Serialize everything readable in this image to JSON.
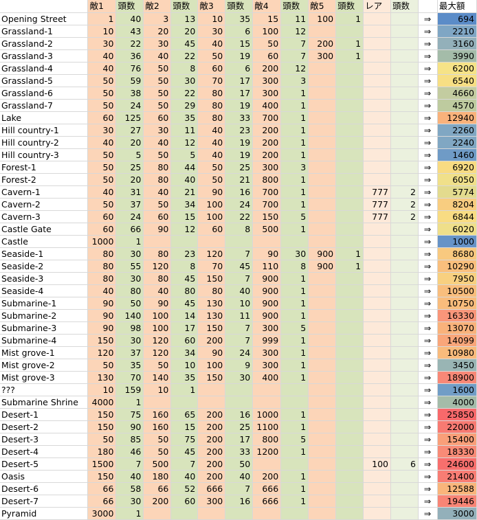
{
  "headers": [
    "",
    "敵1",
    "頭数",
    "敵2",
    "頭数",
    "敵3",
    "頭数",
    "敵4",
    "頭数",
    "敵5",
    "頭数",
    "レア",
    "頭数",
    "",
    "最大額"
  ],
  "arrow": "⇒",
  "rows": [
    {
      "name": "Opening Street",
      "v": [
        "1",
        "40",
        "3",
        "13",
        "10",
        "35",
        "15",
        "11",
        "100",
        "1",
        "",
        ""
      ],
      "max": "694",
      "color": "#5b8cc8"
    },
    {
      "name": "Grassland-1",
      "v": [
        "10",
        "43",
        "20",
        "20",
        "30",
        "6",
        "100",
        "12",
        "",
        "",
        "",
        ""
      ],
      "max": "2210",
      "color": "#7fa6c4"
    },
    {
      "name": "Grassland-2",
      "v": [
        "30",
        "22",
        "30",
        "45",
        "40",
        "15",
        "50",
        "7",
        "200",
        "1",
        "",
        ""
      ],
      "max": "3160",
      "color": "#93b0ba"
    },
    {
      "name": "Grassland-3",
      "v": [
        "40",
        "36",
        "40",
        "22",
        "50",
        "19",
        "60",
        "7",
        "300",
        "1",
        "",
        ""
      ],
      "max": "3990",
      "color": "#a4bca9"
    },
    {
      "name": "Grassland-4",
      "v": [
        "40",
        "76",
        "50",
        "8",
        "60",
        "6",
        "200",
        "12",
        "",
        "",
        "",
        ""
      ],
      "max": "6200",
      "color": "#f6e387"
    },
    {
      "name": "Grassland-5",
      "v": [
        "50",
        "59",
        "50",
        "30",
        "70",
        "17",
        "300",
        "3",
        "",
        "",
        "",
        ""
      ],
      "max": "6540",
      "color": "#f7df84"
    },
    {
      "name": "Grassland-6",
      "v": [
        "50",
        "38",
        "50",
        "22",
        "80",
        "17",
        "300",
        "1",
        "",
        "",
        "",
        ""
      ],
      "max": "4660",
      "color": "#c3cca0"
    },
    {
      "name": "Grassland-7",
      "v": [
        "50",
        "24",
        "50",
        "29",
        "80",
        "19",
        "400",
        "1",
        "",
        "",
        "",
        ""
      ],
      "max": "4570",
      "color": "#becb9f"
    },
    {
      "name": "Lake",
      "v": [
        "60",
        "125",
        "60",
        "35",
        "80",
        "33",
        "700",
        "1",
        "",
        "",
        "",
        ""
      ],
      "max": "12940",
      "color": "#f9b27b"
    },
    {
      "name": "Hill country-1",
      "v": [
        "30",
        "27",
        "30",
        "11",
        "40",
        "23",
        "200",
        "1",
        "",
        "",
        "",
        ""
      ],
      "max": "2260",
      "color": "#80a7c3"
    },
    {
      "name": "Hill country-2",
      "v": [
        "40",
        "20",
        "40",
        "12",
        "40",
        "19",
        "200",
        "1",
        "",
        "",
        "",
        ""
      ],
      "max": "2240",
      "color": "#80a7c3"
    },
    {
      "name": "Hill country-3",
      "v": [
        "50",
        "5",
        "50",
        "5",
        "40",
        "19",
        "200",
        "1",
        "",
        "",
        "",
        ""
      ],
      "max": "1460",
      "color": "#6f9bc6"
    },
    {
      "name": "Forest-1",
      "v": [
        "50",
        "25",
        "80",
        "44",
        "50",
        "25",
        "300",
        "3",
        "",
        "",
        "",
        ""
      ],
      "max": "6920",
      "color": "#f8db82"
    },
    {
      "name": "Forest-2",
      "v": [
        "50",
        "20",
        "80",
        "40",
        "50",
        "21",
        "800",
        "1",
        "",
        "",
        "",
        ""
      ],
      "max": "6050",
      "color": "#f0e08a"
    },
    {
      "name": "Cavern-1",
      "v": [
        "40",
        "31",
        "40",
        "21",
        "90",
        "16",
        "700",
        "1",
        "",
        "",
        "777",
        "2"
      ],
      "max": "5774",
      "color": "#e3db8e"
    },
    {
      "name": "Cavern-2",
      "v": [
        "50",
        "37",
        "50",
        "34",
        "100",
        "24",
        "700",
        "1",
        "",
        "",
        "777",
        "2"
      ],
      "max": "8204",
      "color": "#f8cd80"
    },
    {
      "name": "Cavern-3",
      "v": [
        "60",
        "24",
        "60",
        "15",
        "100",
        "22",
        "150",
        "5",
        "",
        "",
        "777",
        "2"
      ],
      "max": "6844",
      "color": "#f8dc83"
    },
    {
      "name": "Castle Gate",
      "v": [
        "60",
        "66",
        "90",
        "12",
        "60",
        "8",
        "500",
        "1",
        "",
        "",
        "",
        ""
      ],
      "max": "6020",
      "color": "#efdf8a"
    },
    {
      "name": "Castle",
      "v": [
        "1000",
        "1",
        "",
        "",
        "",
        "",
        "",
        "",
        "",
        "",
        "",
        ""
      ],
      "max": "1000",
      "color": "#6693c7"
    },
    {
      "name": "Seaside-1",
      "v": [
        "80",
        "30",
        "80",
        "23",
        "120",
        "7",
        "90",
        "30",
        "900",
        "1",
        "",
        ""
      ],
      "max": "8680",
      "color": "#f8c97f"
    },
    {
      "name": "Seaside-2",
      "v": [
        "80",
        "55",
        "120",
        "8",
        "70",
        "45",
        "110",
        "8",
        "900",
        "1",
        "",
        ""
      ],
      "max": "10290",
      "color": "#f9bf7d"
    },
    {
      "name": "Seaside-3",
      "v": [
        "80",
        "30",
        "80",
        "45",
        "150",
        "7",
        "900",
        "1",
        "",
        "",
        "",
        ""
      ],
      "max": "7950",
      "color": "#f8d080"
    },
    {
      "name": "Seaside-4",
      "v": [
        "40",
        "80",
        "40",
        "80",
        "80",
        "40",
        "900",
        "1",
        "",
        "",
        "",
        ""
      ],
      "max": "10500",
      "color": "#f9be7d"
    },
    {
      "name": "Submarine-1",
      "v": [
        "90",
        "50",
        "90",
        "45",
        "130",
        "10",
        "900",
        "1",
        "",
        "",
        "",
        ""
      ],
      "max": "10750",
      "color": "#f9bc7c"
    },
    {
      "name": "Submarine-2",
      "v": [
        "90",
        "140",
        "100",
        "14",
        "130",
        "11",
        "900",
        "1",
        "",
        "",
        "",
        ""
      ],
      "max": "16330",
      "color": "#f9967a"
    },
    {
      "name": "Submarine-3",
      "v": [
        "90",
        "98",
        "100",
        "17",
        "150",
        "7",
        "300",
        "5",
        "",
        "",
        "",
        ""
      ],
      "max": "13070",
      "color": "#f9b27b"
    },
    {
      "name": "Submarine-4",
      "v": [
        "150",
        "30",
        "120",
        "60",
        "200",
        "7",
        "999",
        "1",
        "",
        "",
        "",
        ""
      ],
      "max": "14099",
      "color": "#f9a67a"
    },
    {
      "name": "Mist grove-1",
      "v": [
        "120",
        "37",
        "120",
        "34",
        "90",
        "24",
        "300",
        "1",
        "",
        "",
        "",
        ""
      ],
      "max": "10980",
      "color": "#f9bb7c"
    },
    {
      "name": "Mist grove-2",
      "v": [
        "50",
        "35",
        "50",
        "10",
        "100",
        "9",
        "300",
        "1",
        "",
        "",
        "",
        ""
      ],
      "max": "3450",
      "color": "#99b5b4"
    },
    {
      "name": "Mist grove-3",
      "v": [
        "130",
        "70",
        "140",
        "35",
        "150",
        "30",
        "400",
        "1",
        "",
        "",
        "",
        ""
      ],
      "max": "18900",
      "color": "#f88877"
    },
    {
      "name": "???",
      "v": [
        "10",
        "159",
        "10",
        "1",
        "",
        "",
        "",
        "",
        "",
        "",
        "",
        ""
      ],
      "max": "1600",
      "color": "#719dc6"
    },
    {
      "name": "Submarine Shrine",
      "v": [
        "4000",
        "1",
        "",
        "",
        "",
        "",
        "",
        "",
        "",
        "",
        "",
        ""
      ],
      "max": "4000",
      "color": "#a4bca9"
    },
    {
      "name": "Desert-1",
      "v": [
        "150",
        "75",
        "160",
        "65",
        "200",
        "16",
        "1000",
        "1",
        "",
        "",
        "",
        ""
      ],
      "max": "25850",
      "color": "#f8696b"
    },
    {
      "name": "Desert-2",
      "v": [
        "150",
        "90",
        "160",
        "15",
        "200",
        "25",
        "1100",
        "1",
        "",
        "",
        "",
        ""
      ],
      "max": "22000",
      "color": "#f87a72"
    },
    {
      "name": "Desert-3",
      "v": [
        "50",
        "85",
        "50",
        "75",
        "200",
        "17",
        "800",
        "5",
        "",
        "",
        "",
        ""
      ],
      "max": "15400",
      "color": "#f99f79"
    },
    {
      "name": "Desert-4",
      "v": [
        "180",
        "46",
        "50",
        "45",
        "200",
        "33",
        "1200",
        "1",
        "",
        "",
        "",
        ""
      ],
      "max": "18330",
      "color": "#f88b77"
    },
    {
      "name": "Desert-5",
      "v": [
        "1500",
        "7",
        "500",
        "7",
        "200",
        "50",
        "",
        "",
        "",
        "",
        "100",
        "6"
      ],
      "max": "24600",
      "color": "#f86f6d"
    },
    {
      "name": "Oasis",
      "v": [
        "150",
        "40",
        "180",
        "40",
        "200",
        "40",
        "200",
        "1",
        "",
        "",
        "",
        ""
      ],
      "max": "21400",
      "color": "#f87d74"
    },
    {
      "name": "Desert-6",
      "v": [
        "66",
        "58",
        "66",
        "52",
        "666",
        "7",
        "666",
        "1",
        "",
        "",
        "",
        ""
      ],
      "max": "12588",
      "color": "#f9b57b"
    },
    {
      "name": "Desert-7",
      "v": [
        "66",
        "30",
        "200",
        "60",
        "300",
        "16",
        "666",
        "1",
        "",
        "",
        "",
        ""
      ],
      "max": "19446",
      "color": "#f88576"
    },
    {
      "name": "Pyramid",
      "v": [
        "3000",
        "1",
        "",
        "",
        "",
        "",
        "",
        "",
        "",
        "",
        "",
        ""
      ],
      "max": "3000",
      "color": "#93b0ba"
    }
  ]
}
